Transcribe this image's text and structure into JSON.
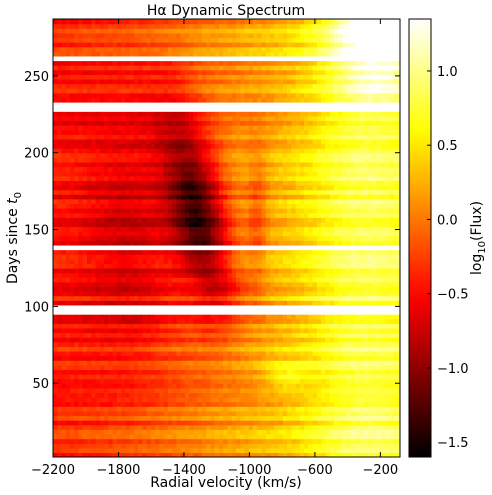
{
  "chart_data": {
    "type": "heatmap",
    "title": "Hα Dynamic Spectrum",
    "xlabel": "Radial velocity (km/s)",
    "ylabel": "Days since ",
    "ylabel_sym": "t",
    "ylabel_sub": "0",
    "xlim": [
      -2200,
      -80
    ],
    "ylim": [
      2,
      287
    ],
    "x_ticks": [
      -2200,
      -1800,
      -1400,
      -1000,
      -600,
      -200
    ],
    "x_tick_labels": [
      "−2200",
      "−1800",
      "−1400",
      "−1000",
      "−600",
      "−200"
    ],
    "y_ticks": [
      50,
      100,
      150,
      200,
      250
    ],
    "y_tick_labels": [
      "50",
      "100",
      "150",
      "200",
      "250"
    ],
    "colorbar": {
      "label": "log",
      "label_sub": "10",
      "label_tail": "(Flux)",
      "range": [
        -1.6,
        1.35
      ],
      "ticks": [
        -1.5,
        -1.0,
        -0.5,
        0.0,
        0.5,
        1.0
      ],
      "tick_labels": [
        "−1.5",
        "−1.0",
        "−0.5",
        "0.0",
        "0.5",
        "1.0"
      ],
      "colormap": "hot"
    },
    "bright_rows": [
      98,
      139,
      230,
      262
    ],
    "features": {
      "absorption_trough": "deep minimum near −1300 km/s around days 125–200",
      "emission_peak": "brightest emission near −200 km/s around days 235–275"
    }
  }
}
